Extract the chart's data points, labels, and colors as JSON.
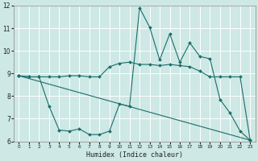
{
  "xlabel": "Humidex (Indice chaleur)",
  "xlim": [
    -0.5,
    23.5
  ],
  "ylim": [
    6,
    12
  ],
  "yticks": [
    6,
    7,
    8,
    9,
    10,
    11,
    12
  ],
  "xticks": [
    0,
    1,
    2,
    3,
    4,
    5,
    6,
    7,
    8,
    9,
    10,
    11,
    12,
    13,
    14,
    15,
    16,
    17,
    18,
    19,
    20,
    21,
    22,
    23
  ],
  "bg_color": "#cde8e5",
  "line_color": "#1a6e68",
  "grid_color": "#ffffff",
  "lines": [
    {
      "x": [
        0,
        1,
        2,
        3,
        4,
        5,
        6,
        7,
        8,
        9,
        10,
        11,
        12,
        13,
        14,
        15,
        16,
        17,
        18,
        19,
        20,
        21,
        22,
        23
      ],
      "y": [
        8.9,
        8.85,
        8.85,
        7.55,
        6.5,
        6.45,
        6.55,
        6.3,
        6.3,
        6.45,
        7.65,
        7.55,
        11.9,
        11.05,
        9.6,
        10.75,
        9.5,
        10.35,
        9.75,
        9.65,
        7.85,
        7.25,
        6.45,
        6.05
      ]
    },
    {
      "x": [
        0,
        1,
        2,
        3,
        4,
        5,
        6,
        7,
        8,
        9,
        10,
        11,
        12,
        13,
        14,
        15,
        16,
        17,
        18,
        19,
        20,
        21,
        22,
        23
      ],
      "y": [
        8.9,
        8.85,
        8.85,
        8.85,
        8.85,
        8.9,
        8.9,
        8.85,
        8.85,
        9.3,
        9.45,
        9.5,
        9.4,
        9.4,
        9.35,
        9.4,
        9.35,
        9.3,
        9.1,
        8.85,
        8.85,
        8.85,
        8.85,
        6.05
      ]
    },
    {
      "x": [
        0,
        23
      ],
      "y": [
        8.9,
        6.05
      ]
    }
  ]
}
